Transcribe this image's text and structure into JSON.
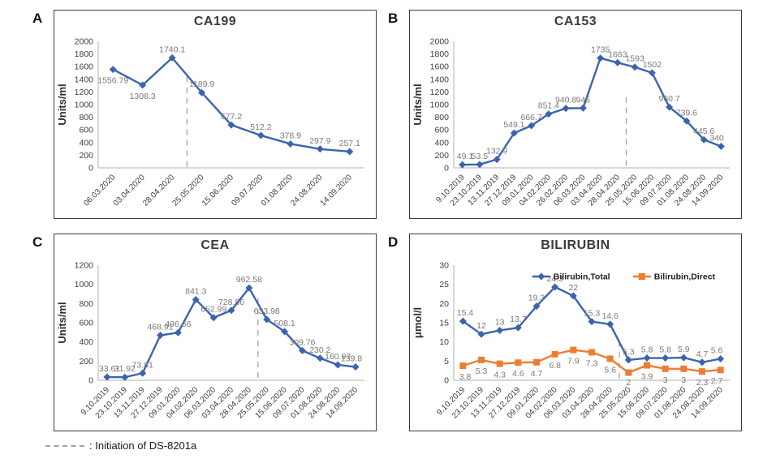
{
  "page": {
    "background": "#ffffff"
  },
  "footer": {
    "text": ": Initiation of DS-8201a"
  },
  "colors": {
    "series_blue": "#3B64AE",
    "series_orange": "#ED7D31",
    "data_label_gray": "#7a7a7a",
    "axis_gray": "#bfbfbf",
    "dash_gray": "#a3a3a3",
    "title_gray": "#3b3b3b"
  },
  "chart_data": [
    {
      "panel": "A",
      "type": "line",
      "title": "CA199",
      "xlabel": "",
      "ylabel": "Units/ml",
      "ylim": [
        0,
        2000
      ],
      "ytick_step": 200,
      "grid": false,
      "legend": null,
      "categories": [
        "06.03.2020",
        "03.04.2020",
        "28.04.2020",
        "25.05.2020",
        "15.06.2020",
        "09.07.2020",
        "01.08.2020",
        "24.08.2020",
        "14.09.2020"
      ],
      "series": [
        {
          "name": "CA199",
          "color": "#3B64AE",
          "marker": "diamond",
          "values": [
            1556.79,
            1308.3,
            1740.1,
            1189.9,
            677.2,
            512.2,
            378.9,
            297.9,
            257.1
          ],
          "label_side": [
            "below",
            "below",
            "above",
            "above",
            "above",
            "above",
            "above",
            "above",
            "above"
          ]
        }
      ],
      "dashed_line": {
        "between_indices": [
          2,
          3
        ],
        "top_fraction": 0.28
      }
    },
    {
      "panel": "B",
      "type": "line",
      "title": "CA153",
      "xlabel": "",
      "ylabel": "Units/ml",
      "ylim": [
        0,
        2000
      ],
      "ytick_step": 200,
      "grid": false,
      "legend": null,
      "categories": [
        "9.10.2019",
        "23.10.2019",
        "13.11.2019",
        "27.12.2019",
        "09.01.2020",
        "04.02.2020",
        "26.02.2020",
        "06.03.2020",
        "03.04.2020",
        "28.04.2020",
        "25.05.2020",
        "15.06.2020",
        "09.07.2020",
        "01.08.2020",
        "24.08.2020",
        "14.09.2020"
      ],
      "series": [
        {
          "name": "CA153",
          "color": "#3B64AE",
          "marker": "diamond",
          "values": [
            49.1,
            53.5,
            132.9,
            549.1,
            666.7,
            851.4,
            940.8,
            945,
            1735,
            1663,
            1593,
            1502,
            960.7,
            739.6,
            445.6,
            340
          ],
          "label_side": "above"
        }
      ],
      "dashed_line": {
        "between_indices": [
          9,
          10
        ],
        "top_fraction": 0.44
      }
    },
    {
      "panel": "C",
      "type": "line",
      "title": "CEA",
      "xlabel": "",
      "ylabel": "Units/ml",
      "ylim": [
        0,
        1200
      ],
      "ytick_step": 200,
      "grid": false,
      "legend": null,
      "categories": [
        "9.10.2019",
        "23.10.2019",
        "13.11.2019",
        "27.12.2019",
        "09.01.2020",
        "04.02.2020",
        "06.03.2020",
        "03.04.2020",
        "28.04.2020",
        "25.05.2020",
        "15.06.2020",
        "09.07.2020",
        "01.08.2020",
        "24.08.2020",
        "14.09.2020"
      ],
      "series": [
        {
          "name": "CEA",
          "color": "#3B64AE",
          "marker": "diamond",
          "values": [
            33.61,
            31.92,
            73.81,
            468.91,
            496.66,
            841.3,
            652.99,
            728.86,
            962.58,
            633.98,
            508.1,
            309.76,
            230.2,
            160.97,
            139.8
          ],
          "label_side": "above"
        }
      ],
      "dashed_line": {
        "between_indices": [
          8,
          9
        ],
        "top_fraction": 0.29
      }
    },
    {
      "panel": "D",
      "type": "line",
      "title": "BILIRUBIN",
      "xlabel": "",
      "ylabel": "μmol/l",
      "ylim": [
        0,
        30
      ],
      "ytick_step": 5,
      "grid": false,
      "legend": {
        "position": "top-right",
        "entries": [
          "Bilirubin,Total",
          "Bilirubin,Direct"
        ]
      },
      "categories": [
        "9.10.2019",
        "23.10.2019",
        "13.11.2019",
        "27.12.2019",
        "09.01.2020",
        "04.02.2020",
        "06.03.2020",
        "03.04.2020",
        "28.04.2020",
        "25.05.2020",
        "15.06.2020",
        "09.07.2020",
        "01.08.2020",
        "24.08.2020",
        "14.09.2020"
      ],
      "series": [
        {
          "name": "Bilirubin,Total",
          "color": "#3B64AE",
          "marker": "diamond",
          "values": [
            15.4,
            12,
            13,
            13.7,
            19.3,
            24.3,
            22,
            15.3,
            14.6,
            5.3,
            5.8,
            5.8,
            5.9,
            4.7,
            5.6
          ],
          "label_side": "above"
        },
        {
          "name": "Bilirubin,Direct",
          "color": "#ED7D31",
          "marker": "square",
          "values": [
            3.8,
            5.3,
            4.3,
            4.6,
            4.7,
            6.8,
            7.9,
            7.3,
            5.6,
            2,
            3.9,
            3,
            3,
            2.3,
            2.7
          ],
          "label_side": "below"
        }
      ],
      "dashed_line": {
        "between_indices": [
          8,
          9
        ],
        "top_fraction": 0.66
      }
    }
  ]
}
